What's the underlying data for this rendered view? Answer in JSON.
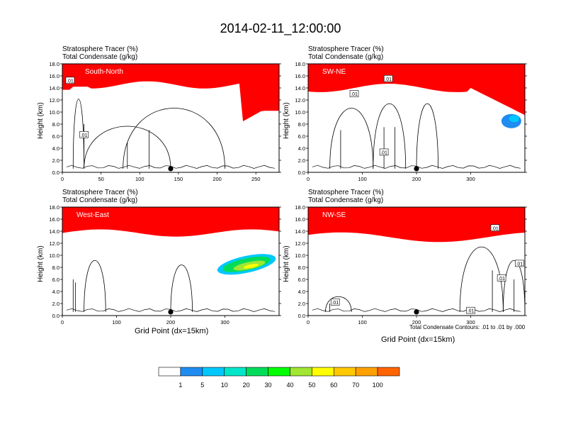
{
  "title": "2014-02-11_12:00:00",
  "contour_note": "Total Condensate Contours: .01 to .01 by .000",
  "colors": {
    "levels": [
      "#ffffff",
      "#1e8cf0",
      "#00c8ff",
      "#00e6c8",
      "#00dc5a",
      "#00ff00",
      "#a0e632",
      "#ffff00",
      "#ffc800",
      "#ffa000",
      "#ff6400",
      "#ff0000"
    ]
  },
  "chart_data": [
    {
      "type": "contour",
      "id": "south-north",
      "label": "South-North",
      "title_lines": [
        "Stratosphere Tracer   (%)",
        "Total Condensate   (g/kg)"
      ],
      "ylabel": "Height (km)",
      "xlabel": "",
      "xlim": [
        0,
        280
      ],
      "ylim": [
        0,
        18
      ],
      "xticks": [
        0,
        50,
        100,
        150,
        200,
        250
      ],
      "yticks": [
        "0.0",
        "2.0",
        "4.0",
        "6.0",
        "8.0",
        "10.0",
        "12.0",
        "14.0",
        "16.0",
        "18.0"
      ],
      "marker_x": 140,
      "contour_labels": [
        {
          "text": ".01",
          "x": 10,
          "y": 15.2
        },
        {
          "text": ".01",
          "x": 28,
          "y": 6.2
        }
      ]
    },
    {
      "type": "contour",
      "id": "sw-ne",
      "label": "SW-NE",
      "title_lines": [
        "Stratosphere Tracer   (%)",
        "Total Condensate   (g/kg)"
      ],
      "ylabel": "Height (km)",
      "xlabel": "",
      "xlim": [
        0,
        400
      ],
      "ylim": [
        0,
        18
      ],
      "xticks": [
        0,
        100,
        200,
        300
      ],
      "yticks": [
        "0.0",
        "2.0",
        "4.0",
        "6.0",
        "8.0",
        "10.0",
        "12.0",
        "14.0",
        "16.0",
        "18.0"
      ],
      "marker_x": 200,
      "contour_labels": [
        {
          "text": ".01",
          "x": 148,
          "y": 15.5
        },
        {
          "text": ".01",
          "x": 85,
          "y": 13.0
        },
        {
          "text": ".01",
          "x": 140,
          "y": 3.3
        }
      ]
    },
    {
      "type": "contour",
      "id": "west-east",
      "label": "West-East",
      "title_lines": [
        "Stratosphere Tracer   (%)",
        "Total Condensate   (g/kg)"
      ],
      "ylabel": "Height (km)",
      "xlabel": "Grid Point (dx=15km)",
      "xlim": [
        0,
        400
      ],
      "ylim": [
        0,
        18
      ],
      "xticks": [
        0,
        100,
        200,
        300
      ],
      "yticks": [
        "0.0",
        "2.0",
        "4.0",
        "6.0",
        "8.0",
        "10.0",
        "12.0",
        "14.0",
        "16.0",
        "18.0"
      ],
      "marker_x": 200,
      "contour_labels": []
    },
    {
      "type": "contour",
      "id": "nw-se",
      "label": "NW-SE",
      "title_lines": [
        "Stratosphere Tracer   (%)",
        "Total Condensate   (g/kg)"
      ],
      "ylabel": "Height (km)",
      "xlabel": "Grid Point (dx=15km)",
      "xlim": [
        0,
        400
      ],
      "ylim": [
        0,
        18
      ],
      "xticks": [
        0,
        100,
        200,
        300
      ],
      "yticks": [
        "0.0",
        "2.0",
        "4.0",
        "6.0",
        "8.0",
        "10.0",
        "12.0",
        "14.0",
        "16.0",
        "18.0"
      ],
      "marker_x": 200,
      "contour_labels": [
        {
          "text": ".01",
          "x": 345,
          "y": 14.5
        },
        {
          "text": ".01",
          "x": 357,
          "y": 6.2
        },
        {
          "text": ".01",
          "x": 390,
          "y": 8.6
        },
        {
          "text": ".01",
          "x": 50,
          "y": 2.2
        },
        {
          "text": ".01",
          "x": 300,
          "y": 0.8
        }
      ]
    }
  ],
  "colorbar": {
    "labels": [
      "1",
      "5",
      "10",
      "20",
      "30",
      "40",
      "50",
      "60",
      "70",
      "100"
    ]
  }
}
